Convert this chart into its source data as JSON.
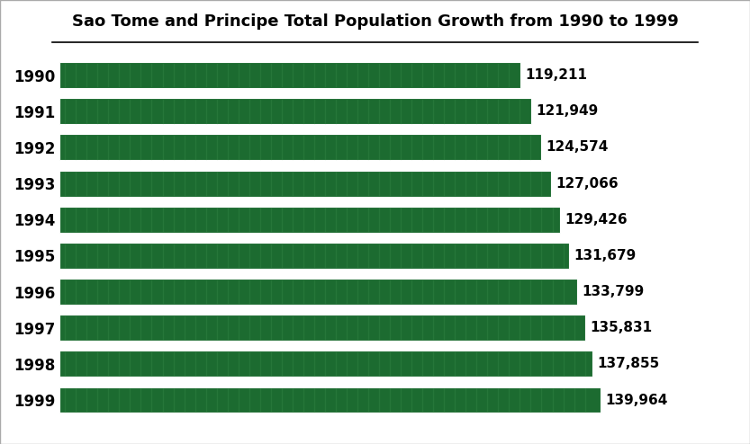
{
  "title": "Sao Tome and Principe Total Population Growth from 1990 to 1999",
  "years": [
    "1990",
    "1991",
    "1992",
    "1993",
    "1994",
    "1995",
    "1996",
    "1997",
    "1998",
    "1999"
  ],
  "values": [
    119211,
    121949,
    124574,
    127066,
    129426,
    131679,
    133799,
    135831,
    137855,
    139964
  ],
  "bar_color": "#1c6b30",
  "background_color": "#ffffff",
  "label_color": "#000000",
  "title_fontsize": 13,
  "ytick_fontsize": 12,
  "value_fontsize": 11,
  "xlim": [
    0,
    175000
  ]
}
